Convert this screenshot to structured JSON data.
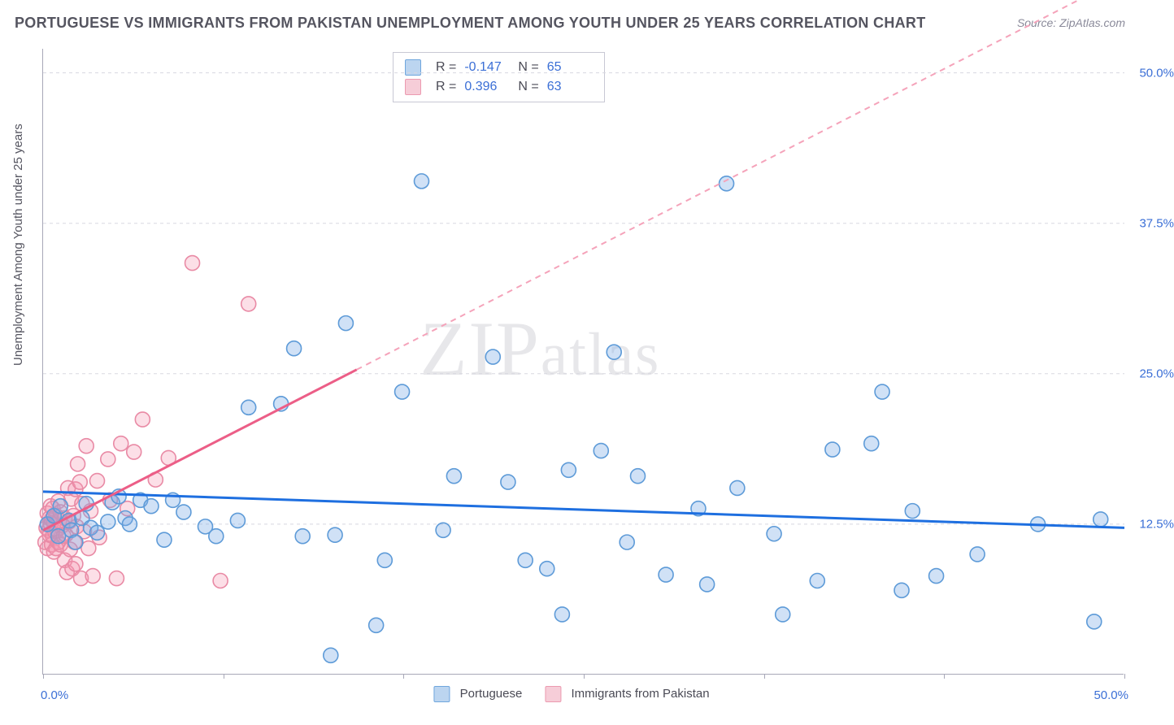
{
  "title": "PORTUGUESE VS IMMIGRANTS FROM PAKISTAN UNEMPLOYMENT AMONG YOUTH UNDER 25 YEARS CORRELATION CHART",
  "source": "Source: ZipAtlas.com",
  "ylabel": "Unemployment Among Youth under 25 years",
  "watermark": "ZIPatlas",
  "chart": {
    "type": "scatter",
    "xlim": [
      0,
      50
    ],
    "ylim": [
      0,
      52
    ],
    "x_origin_label": "0.0%",
    "x_max_label": "50.0%",
    "y_ticks": [
      12.5,
      25.0,
      37.5,
      50.0
    ],
    "y_tick_labels": [
      "12.5%",
      "25.0%",
      "37.5%",
      "50.0%"
    ],
    "x_tick_positions": [
      0,
      8.33,
      16.67,
      25.0,
      33.33,
      41.67,
      50.0
    ],
    "grid_color": "#d8d8e0",
    "axis_color": "#a8a8b8",
    "background_color": "#ffffff",
    "marker_radius": 9,
    "marker_stroke_width": 1.6,
    "series": [
      {
        "name": "Portuguese",
        "legend_label": "Portuguese",
        "fill_color": "rgba(120,170,230,0.35)",
        "stroke_color": "#5e9bd8",
        "swatch_fill": "#bcd5f0",
        "swatch_border": "#6fa6dd",
        "R": "-0.147",
        "N": "65",
        "regression": {
          "x1": 0,
          "y1": 15.2,
          "x2": 50,
          "y2": 12.2,
          "color": "#1e6fe0",
          "width": 3,
          "dash": ""
        },
        "points": [
          [
            0.2,
            12.5
          ],
          [
            0.5,
            13.2
          ],
          [
            0.7,
            11.5
          ],
          [
            0.8,
            14.0
          ],
          [
            1.2,
            12.8
          ],
          [
            1.3,
            12.0
          ],
          [
            1.5,
            11.0
          ],
          [
            1.8,
            13.0
          ],
          [
            2.0,
            14.2
          ],
          [
            2.2,
            12.2
          ],
          [
            2.5,
            11.8
          ],
          [
            3.0,
            12.7
          ],
          [
            3.2,
            14.3
          ],
          [
            3.5,
            14.8
          ],
          [
            3.8,
            13.0
          ],
          [
            4.0,
            12.5
          ],
          [
            4.5,
            14.5
          ],
          [
            5.0,
            14.0
          ],
          [
            5.6,
            11.2
          ],
          [
            6.0,
            14.5
          ],
          [
            6.5,
            13.5
          ],
          [
            7.5,
            12.3
          ],
          [
            8.0,
            11.5
          ],
          [
            9.0,
            12.8
          ],
          [
            9.5,
            22.2
          ],
          [
            11.0,
            22.5
          ],
          [
            11.6,
            27.1
          ],
          [
            12.0,
            11.5
          ],
          [
            13.3,
            1.6
          ],
          [
            13.5,
            11.6
          ],
          [
            14.0,
            29.2
          ],
          [
            15.4,
            4.1
          ],
          [
            15.8,
            9.5
          ],
          [
            16.6,
            23.5
          ],
          [
            17.5,
            41.0
          ],
          [
            18.5,
            12.0
          ],
          [
            19.0,
            16.5
          ],
          [
            20.8,
            26.4
          ],
          [
            21.5,
            16.0
          ],
          [
            22.3,
            9.5
          ],
          [
            23.3,
            8.8
          ],
          [
            24.0,
            5.0
          ],
          [
            24.3,
            17.0
          ],
          [
            25.8,
            18.6
          ],
          [
            26.4,
            26.8
          ],
          [
            27.0,
            11.0
          ],
          [
            27.5,
            16.5
          ],
          [
            28.8,
            8.3
          ],
          [
            30.3,
            13.8
          ],
          [
            30.7,
            7.5
          ],
          [
            31.6,
            40.8
          ],
          [
            32.1,
            15.5
          ],
          [
            33.8,
            11.7
          ],
          [
            34.2,
            5.0
          ],
          [
            35.8,
            7.8
          ],
          [
            36.5,
            18.7
          ],
          [
            38.3,
            19.2
          ],
          [
            38.8,
            23.5
          ],
          [
            39.7,
            7.0
          ],
          [
            40.2,
            13.6
          ],
          [
            41.3,
            8.2
          ],
          [
            43.2,
            10.0
          ],
          [
            46.0,
            12.5
          ],
          [
            48.6,
            4.4
          ],
          [
            48.9,
            12.9
          ]
        ]
      },
      {
        "name": "Immigrants from Pakistan",
        "legend_label": "Immigrants from Pakistan",
        "fill_color": "rgba(245,150,175,0.30)",
        "stroke_color": "#e98aa5",
        "swatch_fill": "#f6cdd8",
        "swatch_border": "#ec9ab0",
        "R": "0.396",
        "N": "63",
        "regression": {
          "x1": 0,
          "y1": 12.0,
          "x2": 50,
          "y2": 58.0,
          "color": "#ec5e87",
          "width": 3,
          "dash": ""
        },
        "regression_extrapolate": {
          "x1": 14.5,
          "y1": 25.3,
          "x2": 50,
          "y2": 58.0,
          "color": "#f5a3ba",
          "width": 2,
          "dash": "6 5"
        },
        "points": [
          [
            0.1,
            11.0
          ],
          [
            0.15,
            12.2
          ],
          [
            0.2,
            10.5
          ],
          [
            0.2,
            13.4
          ],
          [
            0.25,
            12.0
          ],
          [
            0.3,
            11.6
          ],
          [
            0.3,
            13.0
          ],
          [
            0.35,
            12.5
          ],
          [
            0.35,
            14.0
          ],
          [
            0.4,
            10.8
          ],
          [
            0.4,
            12.9
          ],
          [
            0.45,
            11.5
          ],
          [
            0.45,
            13.8
          ],
          [
            0.5,
            10.2
          ],
          [
            0.5,
            12.6
          ],
          [
            0.55,
            11.9
          ],
          [
            0.6,
            13.2
          ],
          [
            0.6,
            10.5
          ],
          [
            0.65,
            12.0
          ],
          [
            0.7,
            14.4
          ],
          [
            0.7,
            11.0
          ],
          [
            0.75,
            12.8
          ],
          [
            0.8,
            13.5
          ],
          [
            0.8,
            10.8
          ],
          [
            0.9,
            12.4
          ],
          [
            0.95,
            11.5
          ],
          [
            1.0,
            13.0
          ],
          [
            1.0,
            9.5
          ],
          [
            1.05,
            11.6
          ],
          [
            1.1,
            8.5
          ],
          [
            1.15,
            15.5
          ],
          [
            1.2,
            12.7
          ],
          [
            1.25,
            10.4
          ],
          [
            1.3,
            14.6
          ],
          [
            1.35,
            8.8
          ],
          [
            1.4,
            13.2
          ],
          [
            1.45,
            11.0
          ],
          [
            1.5,
            15.4
          ],
          [
            1.5,
            9.2
          ],
          [
            1.55,
            12.3
          ],
          [
            1.6,
            17.5
          ],
          [
            1.7,
            16.0
          ],
          [
            1.75,
            8.0
          ],
          [
            1.8,
            14.2
          ],
          [
            1.9,
            11.9
          ],
          [
            2.0,
            19.0
          ],
          [
            2.1,
            10.5
          ],
          [
            2.2,
            13.6
          ],
          [
            2.3,
            8.2
          ],
          [
            2.5,
            16.1
          ],
          [
            2.6,
            11.4
          ],
          [
            3.0,
            17.9
          ],
          [
            3.1,
            14.5
          ],
          [
            3.4,
            8.0
          ],
          [
            3.6,
            19.2
          ],
          [
            3.9,
            13.8
          ],
          [
            4.2,
            18.5
          ],
          [
            4.6,
            21.2
          ],
          [
            5.2,
            16.2
          ],
          [
            5.8,
            18.0
          ],
          [
            6.9,
            34.2
          ],
          [
            8.2,
            7.8
          ],
          [
            9.5,
            30.8
          ]
        ]
      }
    ]
  },
  "legend": {
    "items": [
      {
        "key": "Portuguese"
      },
      {
        "key": "Immigrants from Pakistan"
      }
    ]
  }
}
